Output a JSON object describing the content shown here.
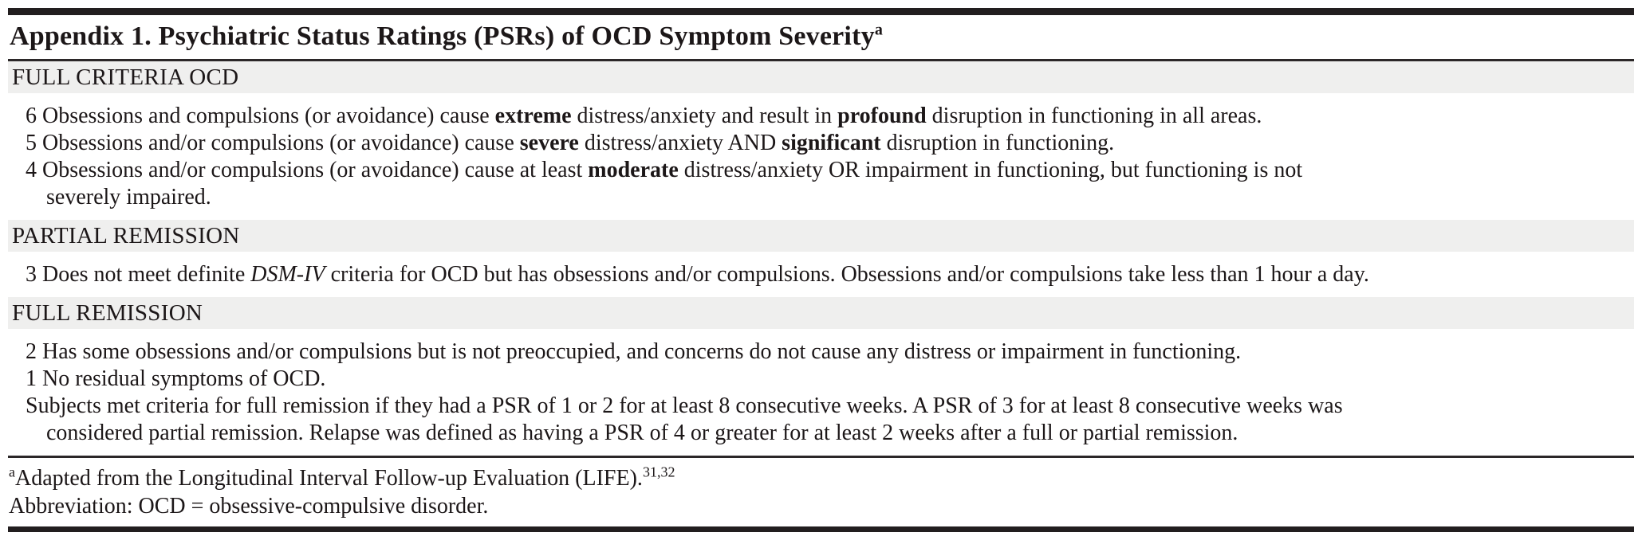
{
  "table": {
    "title": {
      "text": "Appendix 1. Psychiatric Status Ratings (PSRs) of OCD Symptom Severity",
      "marker": "a"
    },
    "colors": {
      "section_band": "#efefee",
      "rule": "#2b2728",
      "border_bar": "#221e1f",
      "text": "#1c1718",
      "background": "#ffffff"
    },
    "sections": [
      {
        "header": "FULL CRITERIA OCD",
        "items": [
          {
            "number": "6",
            "segments": [
              {
                "text": "Obsessions and compulsions (or avoidance) cause "
              },
              {
                "text": "extreme",
                "style": "bold"
              },
              {
                "text": " distress/anxiety and result in "
              },
              {
                "text": "profound",
                "style": "bold"
              },
              {
                "text": " disruption in functioning in all areas."
              }
            ]
          },
          {
            "number": "5",
            "segments": [
              {
                "text": "Obsessions and/or compulsions (or avoidance) cause "
              },
              {
                "text": "severe",
                "style": "bold"
              },
              {
                "text": " distress/anxiety AND "
              },
              {
                "text": "significant",
                "style": "bold"
              },
              {
                "text": " disruption in functioning."
              }
            ]
          },
          {
            "number": "4",
            "segments": [
              {
                "text": "Obsessions and/or compulsions (or avoidance) cause at least "
              },
              {
                "text": "moderate",
                "style": "bold"
              },
              {
                "text": " distress/anxiety OR impairment in functioning, but functioning is not"
              },
              {
                "break": true
              },
              {
                "text": "severely impaired."
              }
            ]
          }
        ]
      },
      {
        "header": "PARTIAL REMISSION",
        "items": [
          {
            "number": "3",
            "segments": [
              {
                "text": "Does not meet definite "
              },
              {
                "text": "DSM-IV",
                "style": "italic"
              },
              {
                "text": " criteria for OCD but has obsessions and/or compulsions. Obsessions and/or compulsions take less than 1 hour a day."
              }
            ]
          }
        ]
      },
      {
        "header": "FULL REMISSION",
        "items": [
          {
            "number": "2",
            "segments": [
              {
                "text": "Has some obsessions and/or compulsions but is not preoccupied, and concerns do not cause any distress or impairment in functioning."
              }
            ]
          },
          {
            "number": "1",
            "segments": [
              {
                "text": "No residual symptoms of OCD."
              }
            ]
          },
          {
            "number": "",
            "segments": [
              {
                "text": "Subjects met criteria for full remission if they had a PSR of 1 or 2 for at least 8 consecutive weeks. A PSR of 3 for at least 8 consecutive weeks was"
              },
              {
                "break": true
              },
              {
                "text": "considered partial remission. Relapse was defined as having a PSR of 4 or greater for at least 2 weeks after a full or partial remission."
              }
            ]
          }
        ]
      }
    ],
    "footnotes": [
      {
        "segments": [
          {
            "text": "a",
            "style": "sup"
          },
          {
            "text": "Adapted from the Longitudinal Interval Follow-up Evaluation (LIFE)."
          },
          {
            "text": "31,32",
            "style": "sup"
          }
        ]
      },
      {
        "segments": [
          {
            "text": "Abbreviation: OCD = obsessive-compulsive disorder."
          }
        ]
      }
    ]
  }
}
